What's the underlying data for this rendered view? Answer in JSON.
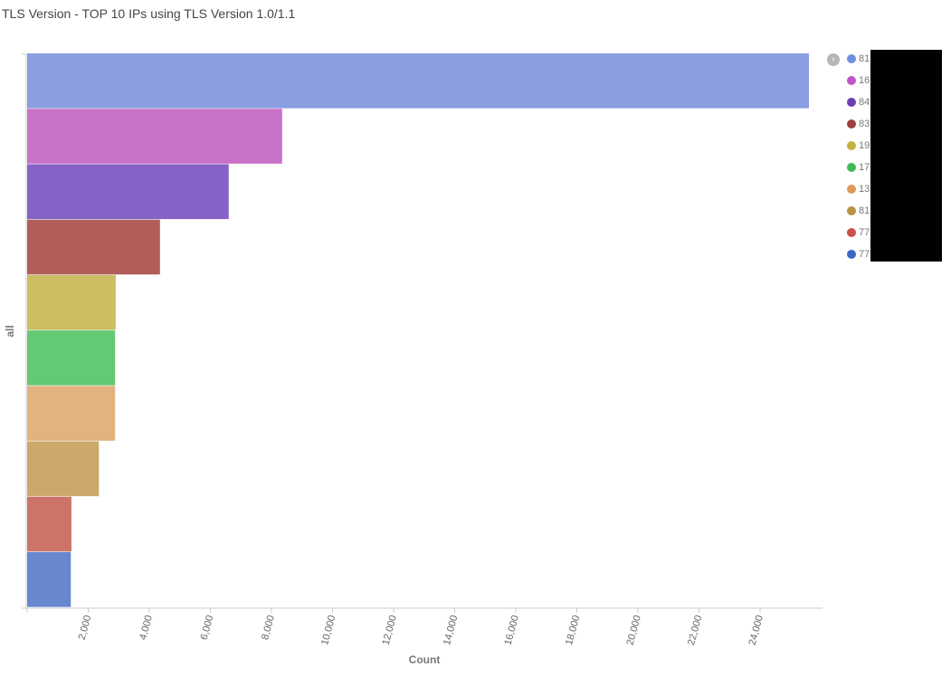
{
  "title": "TLS Version - TOP 10 IPs using TLS Version 1.0/1.1",
  "chart_data": {
    "type": "bar",
    "orientation": "horizontal",
    "categories": [
      "81",
      "16",
      "84",
      "83",
      "19",
      "17",
      "13",
      "81",
      "77",
      "77"
    ],
    "values": [
      25600,
      8350,
      6600,
      4350,
      2900,
      2880,
      2880,
      2350,
      1450,
      1430
    ],
    "colors": [
      "#8a9ee0",
      "#c973c8",
      "#8462c6",
      "#b15e5b",
      "#cbbd62",
      "#64c974",
      "#e2b380",
      "#cca96a",
      "#cd7468",
      "#6788cf"
    ],
    "xlabel": "Count",
    "ylabel": "all",
    "xlim": [
      0,
      26000
    ],
    "xticks": [
      "2,000",
      "4,000",
      "6,000",
      "8,000",
      "10,000",
      "12,000",
      "14,000",
      "16,000",
      "18,000",
      "20,000",
      "22,000",
      "24,000"
    ],
    "grid": false,
    "legend_position": "right"
  },
  "legend": {
    "toggle_icon": "chevron-right-icon",
    "items": [
      {
        "label": "81",
        "color": "#6f8fe0"
      },
      {
        "label": "16",
        "color": "#c057c6"
      },
      {
        "label": "84",
        "color": "#6a3fb3"
      },
      {
        "label": "83",
        "color": "#a03f3b"
      },
      {
        "label": "19",
        "color": "#c2b140"
      },
      {
        "label": "17",
        "color": "#3dbb55"
      },
      {
        "label": "13",
        "color": "#e09a5a"
      },
      {
        "label": "81",
        "color": "#b8923f"
      },
      {
        "label": "77",
        "color": "#c9524a"
      },
      {
        "label": "77",
        "color": "#3e68c6"
      }
    ]
  }
}
